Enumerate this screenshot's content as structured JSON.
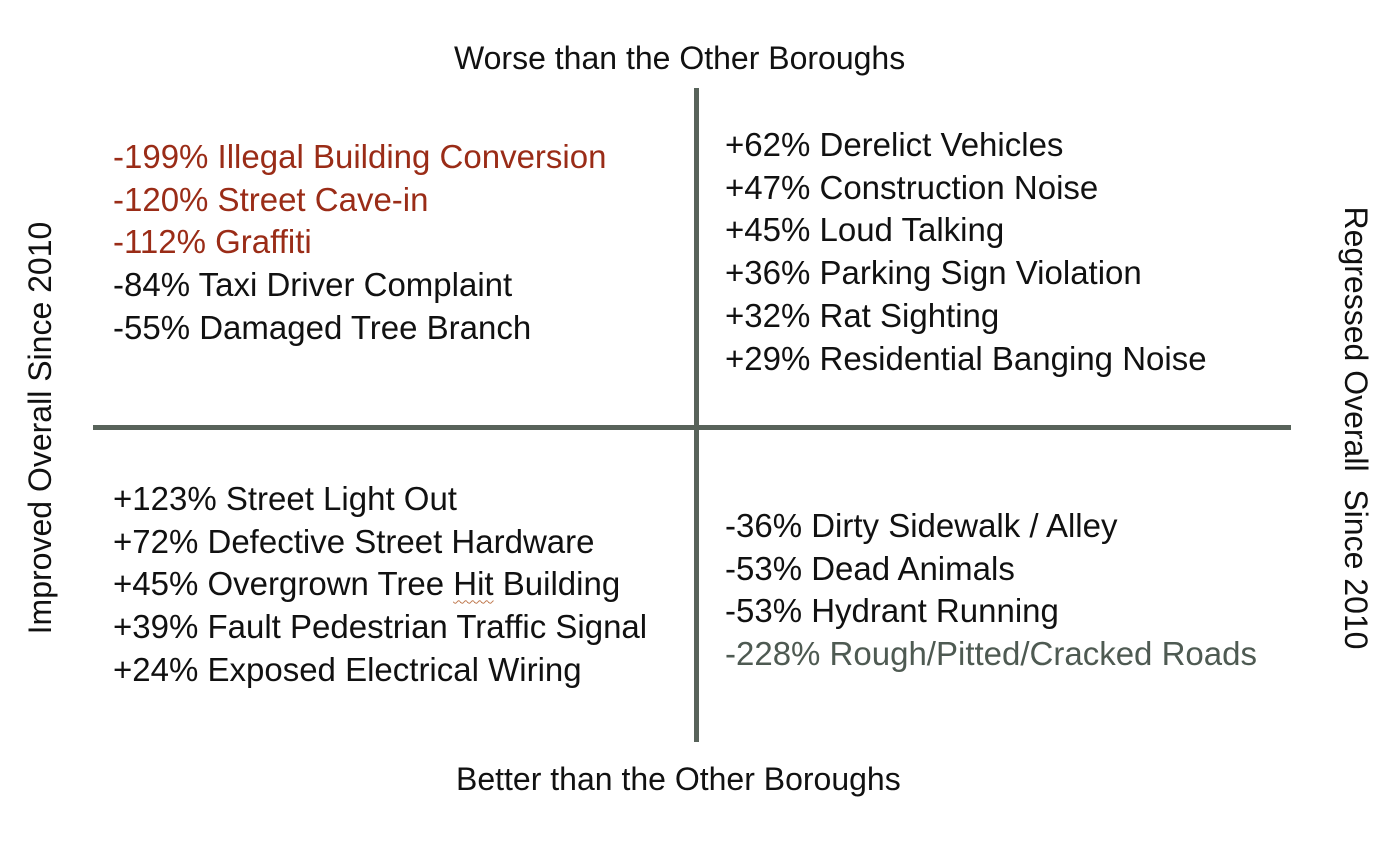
{
  "axes": {
    "top": "Worse than the Other Boroughs",
    "bottom": "Better than the Other Boroughs",
    "left": "Improved Overall Since 2010",
    "right": "Regressed Overall  Since 2010"
  },
  "colors": {
    "default_text": "#111111",
    "highlight_red": "#9a2c17",
    "highlight_gray": "#4e5a52",
    "axis_line": "#58635a"
  },
  "quadrants": {
    "top_left": {
      "items": [
        {
          "text": "-199% Illegal Building Conversion",
          "color": "#9a2c17"
        },
        {
          "text": "-120% Street Cave-in",
          "color": "#9a2c17"
        },
        {
          "text": "-112% Graffiti",
          "color": "#9a2c17"
        },
        {
          "text": "-84% Taxi Driver Complaint",
          "color": "#111111"
        },
        {
          "text": "-55% Damaged Tree Branch",
          "color": "#111111"
        }
      ]
    },
    "top_right": {
      "items": [
        {
          "text": "+62% Derelict Vehicles",
          "color": "#111111"
        },
        {
          "text": "+47% Construction Noise",
          "color": "#111111"
        },
        {
          "text": "+45% Loud Talking",
          "color": "#111111"
        },
        {
          "text": "+36% Parking Sign Violation",
          "color": "#111111"
        },
        {
          "text": "+32% Rat Sighting",
          "color": "#111111"
        },
        {
          "text": "+29% Residential Banging Noise",
          "color": "#111111"
        }
      ]
    },
    "bottom_left": {
      "items": [
        {
          "text": "+123% Street Light Out",
          "color": "#111111"
        },
        {
          "text": "+72% Defective Street Hardware",
          "color": "#111111"
        },
        {
          "text_before": "+45% Overgrown Tree ",
          "text_marked": "Hit",
          "text_after": " Building",
          "color": "#111111"
        },
        {
          "text": "+39% Fault Pedestrian Traffic Signal",
          "color": "#111111"
        },
        {
          "text": "+24% Exposed Electrical Wiring",
          "color": "#111111"
        }
      ]
    },
    "bottom_right": {
      "items": [
        {
          "text": "-36% Dirty Sidewalk / Alley",
          "color": "#111111"
        },
        {
          "text": "-53% Dead Animals",
          "color": "#111111"
        },
        {
          "text": "-53% Hydrant Running",
          "color": "#111111"
        },
        {
          "text": "-228% Rough/Pitted/Cracked Roads",
          "color": "#4e5a52"
        }
      ]
    }
  }
}
